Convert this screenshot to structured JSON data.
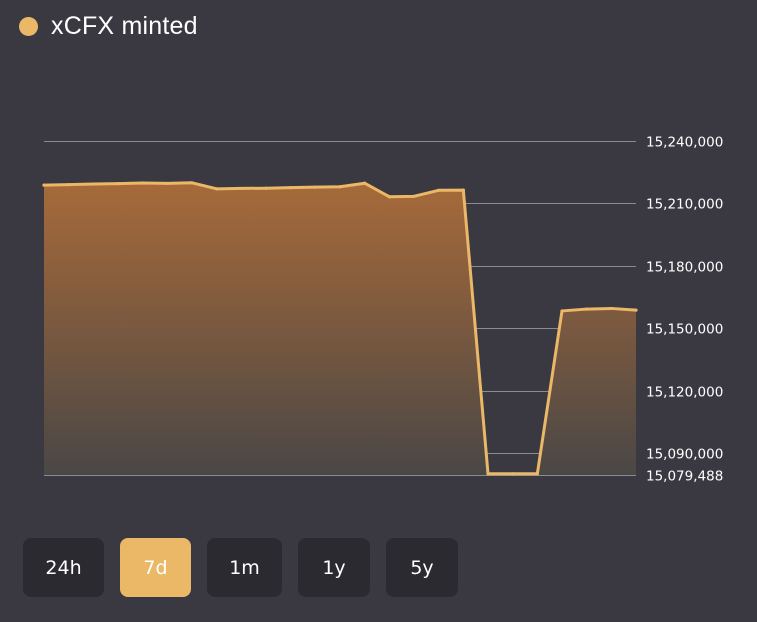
{
  "header": {
    "title": "xCFX minted",
    "series_color": "#eab867"
  },
  "chart_data": {
    "type": "area",
    "title": "xCFX minted",
    "xlabel": "",
    "ylabel": "",
    "ylim": [
      15079488,
      15250000
    ],
    "y_ticks": [
      "15,240,000",
      "15,210,000",
      "15,180,000",
      "15,150,000",
      "15,120,000",
      "15,090,000",
      "15,079,488"
    ],
    "y_tick_values": [
      15240000,
      15210000,
      15180000,
      15150000,
      15120000,
      15090000,
      15079488
    ],
    "grid": true,
    "line_color": "#eab867",
    "fill_top_color": "#a76a3a",
    "fill_bottom_color": "#4a4745",
    "series": [
      {
        "values": [
          15218800,
          15219000,
          15219300,
          15219500,
          15219800,
          15219600,
          15219900,
          15217000,
          15217200,
          15217300,
          15217600,
          15217800,
          15218000,
          15219700,
          15213200,
          15213400,
          15216300,
          15216400,
          15080000,
          15080000,
          15080000,
          15158300,
          15159200,
          15159500,
          15158700
        ]
      }
    ]
  },
  "range_buttons": [
    {
      "label": "24h",
      "active": false
    },
    {
      "label": "7d",
      "active": true
    },
    {
      "label": "1m",
      "active": false
    },
    {
      "label": "1y",
      "active": false
    },
    {
      "label": "5y",
      "active": false
    }
  ]
}
